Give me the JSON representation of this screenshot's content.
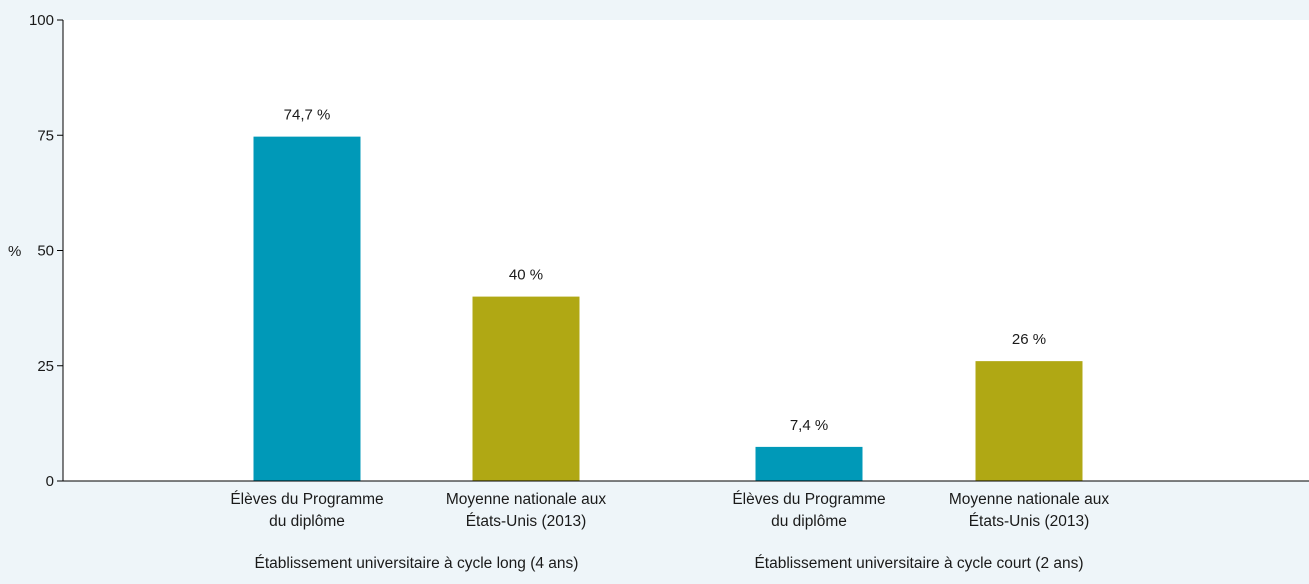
{
  "chart_data": {
    "type": "bar",
    "ylabel": "%",
    "ylim": [
      0,
      100
    ],
    "yticks": [
      0,
      25,
      50,
      75,
      100
    ],
    "grid": false,
    "colors": {
      "programme": "#0099b8",
      "national": "#b0a814",
      "plot_background": "#ffffff",
      "page_background": "#eef5f9"
    },
    "groups": [
      {
        "label": "Établissement universitaire à cycle long (4 ans)",
        "bars": [
          {
            "label_lines": [
              "Élèves du Programme",
              "du diplôme"
            ],
            "value": 74.7,
            "value_label": "74,7 %",
            "color_key": "programme"
          },
          {
            "label_lines": [
              "Moyenne nationale aux",
              "États-Unis (2013)"
            ],
            "value": 40,
            "value_label": "40 %",
            "color_key": "national"
          }
        ]
      },
      {
        "label": "Établissement universitaire à cycle court (2 ans)",
        "bars": [
          {
            "label_lines": [
              "Élèves du Programme",
              "du diplôme"
            ],
            "value": 7.4,
            "value_label": "7,4 %",
            "color_key": "programme"
          },
          {
            "label_lines": [
              "Moyenne nationale aux",
              "États-Unis (2013)"
            ],
            "value": 26,
            "value_label": "26 %",
            "color_key": "national"
          }
        ]
      }
    ]
  }
}
